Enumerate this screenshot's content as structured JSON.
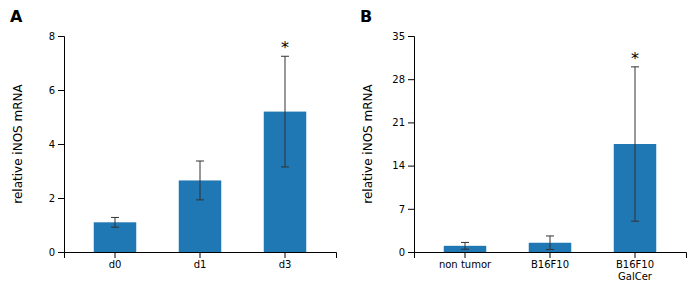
{
  "chart_data": [
    {
      "type": "bar",
      "title": "A",
      "categories": [
        "d0",
        "d1",
        "d3"
      ],
      "values": [
        1.1,
        2.65,
        5.2
      ],
      "errors": [
        0.18,
        0.72,
        2.05
      ],
      "y_label": "relative iNOS mRNA",
      "ylim": [
        0,
        8
      ],
      "yticks": [
        0,
        2,
        4,
        6,
        8
      ],
      "grid": false,
      "annotations": [
        {
          "text": "*",
          "x": "d3"
        }
      ]
    },
    {
      "type": "bar",
      "title": "B",
      "categories": [
        "non tumor",
        "B16F10",
        "B16F10\nGalCer"
      ],
      "values": [
        1.0,
        1.5,
        17.5
      ],
      "errors": [
        0.55,
        1.1,
        12.5
      ],
      "y_label": "relative iNOS mRNA",
      "ylim": [
        0,
        35
      ],
      "yticks": [
        0,
        7,
        14,
        21,
        28,
        35
      ],
      "grid": false,
      "annotations": [
        {
          "text": "*",
          "x": "B16F10\nGalCer"
        }
      ]
    }
  ]
}
